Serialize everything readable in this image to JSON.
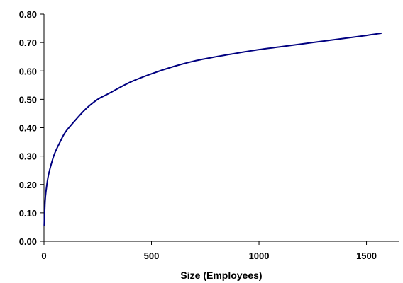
{
  "chart_data": {
    "type": "line",
    "title": "",
    "xlabel": "Size (Employees)",
    "ylabel": "",
    "xlim": [
      0,
      1650
    ],
    "ylim": [
      0,
      0.8
    ],
    "x_ticks": [
      0,
      500,
      1000,
      1500
    ],
    "x_tick_labels": [
      "0",
      "500",
      "1000",
      "1500"
    ],
    "y_ticks": [
      0,
      0.1,
      0.2,
      0.3,
      0.4,
      0.5,
      0.6,
      0.7,
      0.8
    ],
    "y_tick_labels": [
      "0.00",
      "0.10",
      "0.20",
      "0.30",
      "0.40",
      "0.50",
      "0.60",
      "0.70",
      "0.80"
    ],
    "grid": false,
    "legend": "none",
    "series": [
      {
        "color": "#000080",
        "x": [
          1,
          5,
          10,
          20,
          35,
          50,
          75,
          100,
          150,
          200,
          250,
          300,
          400,
          500,
          600,
          700,
          800,
          900,
          1000,
          1100,
          1200,
          1300,
          1400,
          1500,
          1570
        ],
        "y": [
          0.055,
          0.14,
          0.18,
          0.23,
          0.275,
          0.31,
          0.35,
          0.385,
          0.43,
          0.47,
          0.5,
          0.52,
          0.56,
          0.59,
          0.615,
          0.635,
          0.65,
          0.663,
          0.675,
          0.685,
          0.695,
          0.705,
          0.715,
          0.725,
          0.733
        ]
      }
    ]
  }
}
